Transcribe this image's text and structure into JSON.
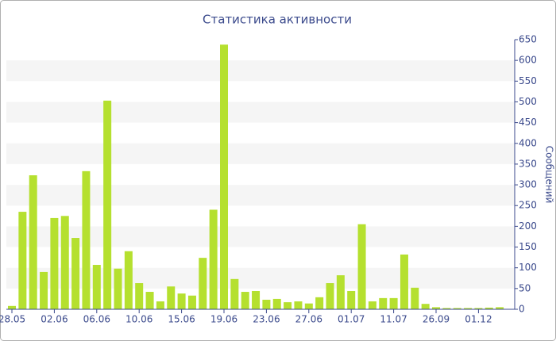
{
  "chart_data": {
    "type": "bar",
    "title": "Статистика активности",
    "y_label": "Сообщений",
    "categories": [
      "28.05",
      null,
      null,
      null,
      "02.06",
      null,
      null,
      null,
      "06.06",
      null,
      null,
      null,
      "10.06",
      null,
      null,
      null,
      "15.06",
      null,
      null,
      null,
      "19.06",
      null,
      null,
      null,
      "23.06",
      null,
      null,
      null,
      "27.06",
      null,
      null,
      null,
      "01.07",
      null,
      null,
      null,
      "11.07",
      null,
      null,
      null,
      "26.09",
      null,
      null,
      null,
      "01.12",
      null,
      null
    ],
    "values": [
      8,
      235,
      323,
      90,
      220,
      225,
      172,
      333,
      107,
      503,
      98,
      140,
      63,
      42,
      19,
      55,
      38,
      33,
      124,
      240,
      638,
      73,
      42,
      44,
      23,
      25,
      17,
      19,
      14,
      29,
      63,
      82,
      44,
      205,
      19,
      27,
      27,
      132,
      52,
      13,
      5,
      3,
      3,
      3,
      3,
      4,
      5
    ],
    "color": "#b5e02f",
    "ylim": [
      0,
      650
    ],
    "yticks": [
      0,
      50,
      100,
      150,
      200,
      250,
      300,
      350,
      400,
      450,
      500,
      550,
      600,
      650
    ],
    "grid": true
  }
}
